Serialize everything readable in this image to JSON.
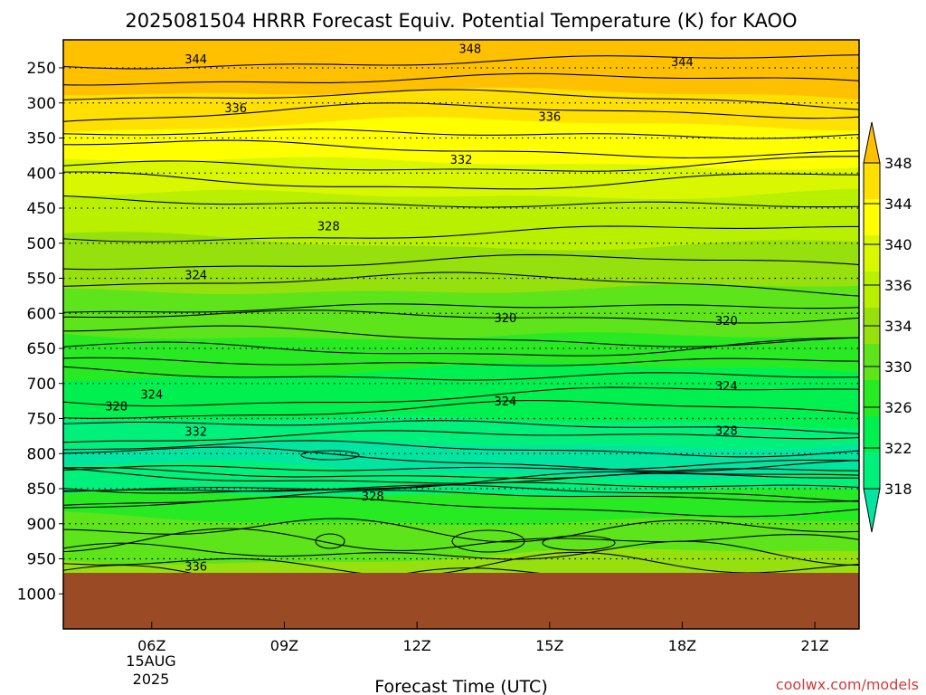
{
  "chart_data": {
    "type": "contour",
    "title": "2025081504 HRRR Forecast Equiv. Potential Temperature (K) for KAOO",
    "xlabel": "Forecast Time (UTC)",
    "ylabel": "",
    "date_label": [
      "15AUG",
      "2025"
    ],
    "watermark": "coolwx.com/models",
    "x_hours_range": [
      4,
      22
    ],
    "x_ticks": [
      {
        "hour": 6,
        "label": "06Z"
      },
      {
        "hour": 9,
        "label": "09Z"
      },
      {
        "hour": 12,
        "label": "12Z"
      },
      {
        "hour": 15,
        "label": "15Z"
      },
      {
        "hour": 18,
        "label": "18Z"
      },
      {
        "hour": 21,
        "label": "21Z"
      }
    ],
    "y_unit": "hPa",
    "y_ticks": [
      "250",
      "300",
      "350",
      "400",
      "450",
      "500",
      "550",
      "600",
      "650",
      "700",
      "750",
      "800",
      "850",
      "900",
      "950",
      "1000"
    ],
    "y_range_hpa": [
      1050,
      210
    ],
    "ground_level_hpa": 970,
    "colorbar": {
      "min": 318,
      "max": 348,
      "labels": [
        "348",
        "344",
        "340",
        "336",
        "334",
        "330",
        "326",
        "322",
        "318"
      ],
      "colors": [
        "#00e6a0",
        "#00f07c",
        "#00f050",
        "#28ea22",
        "#5ee41a",
        "#96e00e",
        "#b8f000",
        "#d9f800",
        "#ffff00",
        "#ffe000",
        "#ffc000"
      ]
    },
    "contour_labels": [
      {
        "text": "348",
        "hour": 13.2,
        "hpa": 222
      },
      {
        "text": "344",
        "hour": 7.0,
        "hpa": 237
      },
      {
        "text": "344",
        "hour": 18.0,
        "hpa": 241
      },
      {
        "text": "336",
        "hour": 7.9,
        "hpa": 307
      },
      {
        "text": "336",
        "hour": 15.0,
        "hpa": 319
      },
      {
        "text": "332",
        "hour": 13.0,
        "hpa": 380
      },
      {
        "text": "328",
        "hour": 10.0,
        "hpa": 475
      },
      {
        "text": "324",
        "hour": 7.0,
        "hpa": 545
      },
      {
        "text": "320",
        "hour": 14.0,
        "hpa": 606
      },
      {
        "text": "320",
        "hour": 19.0,
        "hpa": 610
      },
      {
        "text": "324",
        "hour": 6.0,
        "hpa": 715
      },
      {
        "text": "324",
        "hour": 14.0,
        "hpa": 725
      },
      {
        "text": "324",
        "hour": 19.0,
        "hpa": 703
      },
      {
        "text": "328",
        "hour": 5.2,
        "hpa": 732
      },
      {
        "text": "332",
        "hour": 7.0,
        "hpa": 768
      },
      {
        "text": "328",
        "hour": 19.0,
        "hpa": 767
      },
      {
        "text": "328",
        "hour": 11.0,
        "hpa": 860
      },
      {
        "text": "336",
        "hour": 7.0,
        "hpa": 960
      }
    ],
    "grid": "dotted horizontal lines at pressure levels",
    "legend": "colorbar right"
  }
}
